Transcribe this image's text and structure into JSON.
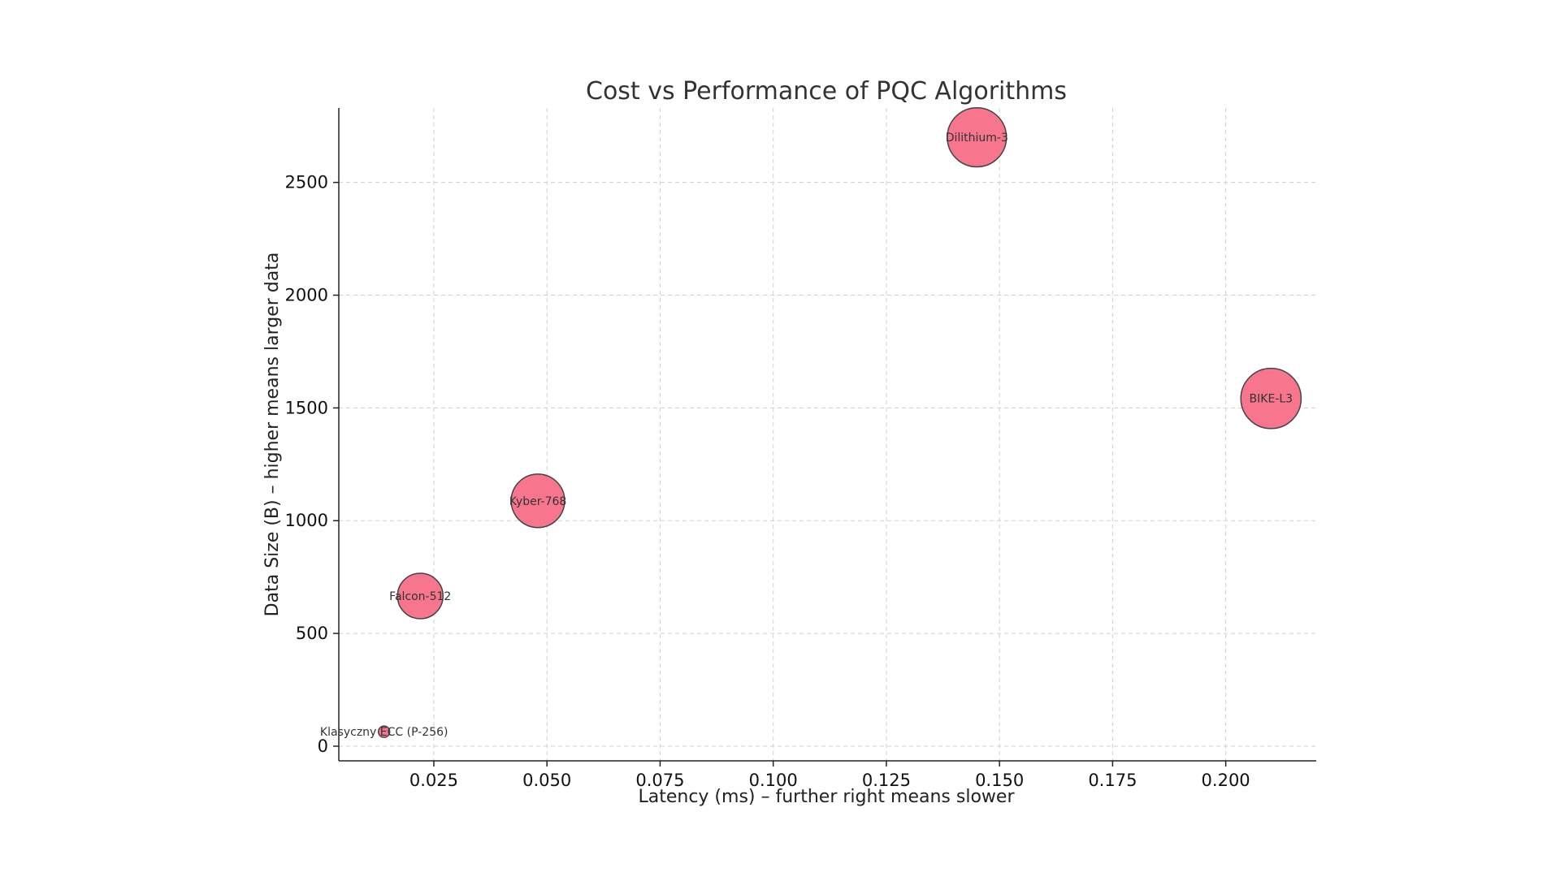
{
  "chart_data": {
    "type": "scatter",
    "title": "Cost vs Performance of PQC Algorithms",
    "xlabel": "Latency (ms) – further right means slower",
    "ylabel": "Data Size (B) – higher means larger data",
    "xlim": [
      0.004,
      0.22
    ],
    "ylim": [
      -65,
      2830
    ],
    "x_ticks": [
      0.025,
      0.05,
      0.075,
      0.1,
      0.125,
      0.15,
      0.175,
      0.2
    ],
    "x_tick_labels": [
      "0.025",
      "0.050",
      "0.075",
      "0.100",
      "0.125",
      "0.150",
      "0.175",
      "0.200"
    ],
    "y_ticks": [
      0,
      500,
      1000,
      1500,
      2000,
      2500
    ],
    "y_tick_labels": [
      "0",
      "500",
      "1000",
      "1500",
      "2000",
      "2500"
    ],
    "grid": true,
    "grid_style": "dashed",
    "marker_color": "#f7768e",
    "marker_edge_color": "#444444",
    "bubble_size_encoding": "relative size",
    "points": [
      {
        "label": "Klasyczny ECC (P-256)",
        "x": 0.014,
        "y": 64,
        "size": 1
      },
      {
        "label": "Falcon-512",
        "x": 0.022,
        "y": 666,
        "size": 4.0
      },
      {
        "label": "Kyber-768",
        "x": 0.048,
        "y": 1088,
        "size": 4.7
      },
      {
        "label": "Dilithium-3",
        "x": 0.145,
        "y": 2700,
        "size": 5.2
      },
      {
        "label": "BIKE-L3",
        "x": 0.21,
        "y": 1542,
        "size": 5.3
      }
    ]
  }
}
